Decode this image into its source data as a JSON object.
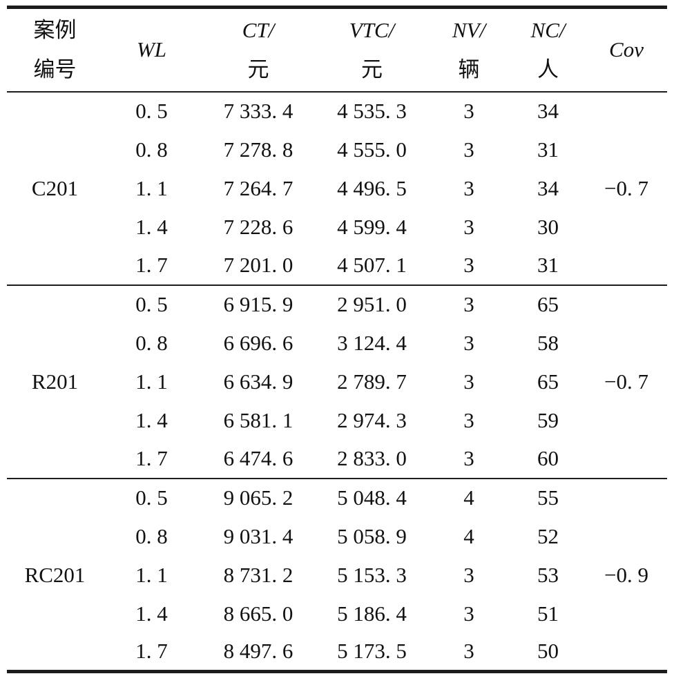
{
  "page": {
    "background_color": "#ffffff",
    "text_color": "#111111",
    "rule_color": "#1c1c1c"
  },
  "table": {
    "header": {
      "case_line1": "案例",
      "case_line2": "编号",
      "wl": "WL",
      "ct_line1": "CT/",
      "ct_line2": "元",
      "vtc_line1": "VTC/",
      "vtc_line2": "元",
      "nv_line1": "NV/",
      "nv_line2": "辆",
      "nc_line1": "NC/",
      "nc_line2": "人",
      "cov": "Cov"
    },
    "groups": [
      {
        "case": "C201",
        "cov": "−0. 7",
        "rows": [
          {
            "wl": "0. 5",
            "ct": "7 333. 4",
            "vtc": "4 535. 3",
            "nv": "3",
            "nc": "34"
          },
          {
            "wl": "0. 8",
            "ct": "7 278. 8",
            "vtc": "4 555. 0",
            "nv": "3",
            "nc": "31"
          },
          {
            "wl": "1. 1",
            "ct": "7 264. 7",
            "vtc": "4 496. 5",
            "nv": "3",
            "nc": "34"
          },
          {
            "wl": "1. 4",
            "ct": "7 228. 6",
            "vtc": "4 599. 4",
            "nv": "3",
            "nc": "30"
          },
          {
            "wl": "1. 7",
            "ct": "7 201. 0",
            "vtc": "4 507. 1",
            "nv": "3",
            "nc": "31"
          }
        ]
      },
      {
        "case": "R201",
        "cov": "−0. 7",
        "rows": [
          {
            "wl": "0. 5",
            "ct": "6 915. 9",
            "vtc": "2 951. 0",
            "nv": "3",
            "nc": "65"
          },
          {
            "wl": "0. 8",
            "ct": "6 696. 6",
            "vtc": "3 124. 4",
            "nv": "3",
            "nc": "58"
          },
          {
            "wl": "1. 1",
            "ct": "6 634. 9",
            "vtc": "2 789. 7",
            "nv": "3",
            "nc": "65"
          },
          {
            "wl": "1. 4",
            "ct": "6 581. 1",
            "vtc": "2 974. 3",
            "nv": "3",
            "nc": "59"
          },
          {
            "wl": "1. 7",
            "ct": "6 474. 6",
            "vtc": "2 833. 0",
            "nv": "3",
            "nc": "60"
          }
        ]
      },
      {
        "case": "RC201",
        "cov": "−0. 9",
        "rows": [
          {
            "wl": "0. 5",
            "ct": "9 065. 2",
            "vtc": "5 048. 4",
            "nv": "4",
            "nc": "55"
          },
          {
            "wl": "0. 8",
            "ct": "9 031. 4",
            "vtc": "5 058. 9",
            "nv": "4",
            "nc": "52"
          },
          {
            "wl": "1. 1",
            "ct": "8 731. 2",
            "vtc": "5 153. 3",
            "nv": "3",
            "nc": "53"
          },
          {
            "wl": "1. 4",
            "ct": "8 665. 0",
            "vtc": "5 186. 4",
            "nv": "3",
            "nc": "51"
          },
          {
            "wl": "1. 7",
            "ct": "8 497. 6",
            "vtc": "5 173. 5",
            "nv": "3",
            "nc": "50"
          }
        ]
      }
    ]
  },
  "chart_data": {
    "type": "table",
    "columns": [
      "案例编号",
      "WL",
      "CT/元",
      "VTC/元",
      "NV/辆",
      "NC/人",
      "Cov"
    ],
    "rows": [
      [
        "C201",
        0.5,
        7333.4,
        4535.3,
        3,
        34,
        -0.7
      ],
      [
        "C201",
        0.8,
        7278.8,
        4555.0,
        3,
        31,
        -0.7
      ],
      [
        "C201",
        1.1,
        7264.7,
        4496.5,
        3,
        34,
        -0.7
      ],
      [
        "C201",
        1.4,
        7228.6,
        4599.4,
        3,
        30,
        -0.7
      ],
      [
        "C201",
        1.7,
        7201.0,
        4507.1,
        3,
        31,
        -0.7
      ],
      [
        "R201",
        0.5,
        6915.9,
        2951.0,
        3,
        65,
        -0.7
      ],
      [
        "R201",
        0.8,
        6696.6,
        3124.4,
        3,
        58,
        -0.7
      ],
      [
        "R201",
        1.1,
        6634.9,
        2789.7,
        3,
        65,
        -0.7
      ],
      [
        "R201",
        1.4,
        6581.1,
        2974.3,
        3,
        59,
        -0.7
      ],
      [
        "R201",
        1.7,
        6474.6,
        2833.0,
        3,
        60,
        -0.7
      ],
      [
        "RC201",
        0.5,
        9065.2,
        5048.4,
        4,
        55,
        -0.9
      ],
      [
        "RC201",
        0.8,
        9031.4,
        5058.9,
        4,
        52,
        -0.9
      ],
      [
        "RC201",
        1.1,
        8731.2,
        5153.3,
        3,
        53,
        -0.9
      ],
      [
        "RC201",
        1.4,
        8665.0,
        5186.4,
        3,
        51,
        -0.9
      ],
      [
        "RC201",
        1.7,
        8497.6,
        5173.5,
        3,
        50,
        -0.9
      ]
    ],
    "notes": "Cov value is printed once per case group in the source image, on the middle (WL=1.1) row."
  }
}
